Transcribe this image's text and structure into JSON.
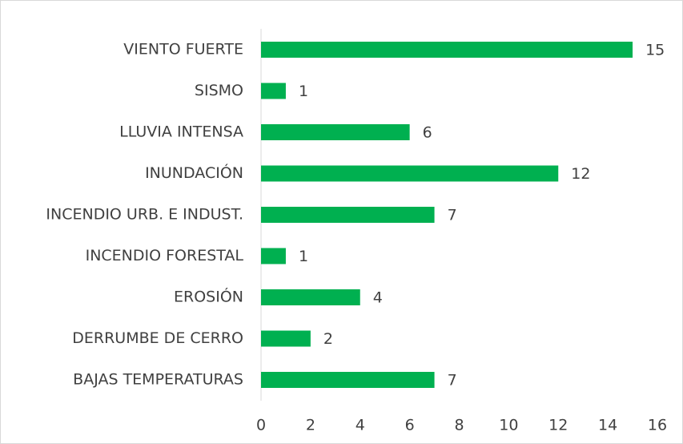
{
  "chart_data": {
    "type": "bar",
    "orientation": "horizontal",
    "categories": [
      "VIENTO FUERTE",
      "SISMO",
      "LLUVIA INTENSA",
      "INUNDACIÓN",
      "INCENDIO URB. E INDUST.",
      "INCENDIO FORESTAL",
      "EROSIÓN",
      "DERRUMBE DE CERRO",
      "BAJAS TEMPERATURAS"
    ],
    "values": [
      15,
      1,
      6,
      12,
      7,
      1,
      4,
      2,
      7
    ],
    "color": "#00b050",
    "xlim": [
      0,
      16
    ],
    "xticks": [
      0,
      2,
      4,
      6,
      8,
      10,
      12,
      14,
      16
    ]
  }
}
